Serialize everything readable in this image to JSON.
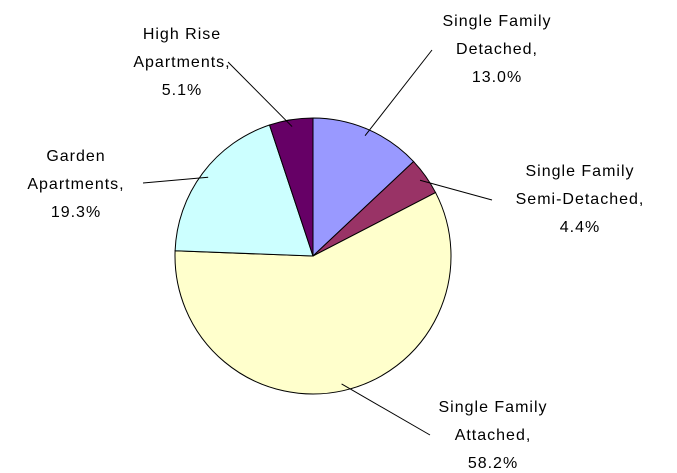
{
  "chart_data": {
    "type": "pie",
    "categories": [
      "Single Family Detached",
      "Single Family Semi-Detached",
      "Single Family Attached",
      "Garden Apartments",
      "High Rise Apartments"
    ],
    "values": [
      13.0,
      4.4,
      58.2,
      19.3,
      5.1
    ],
    "value_labels": [
      "13.0%",
      "4.4%",
      "58.2%",
      "19.3%",
      "5.1%"
    ],
    "label_separator": ",",
    "colors": [
      "#9999ff",
      "#993366",
      "#ffffcc",
      "#ccffff",
      "#660066"
    ]
  }
}
